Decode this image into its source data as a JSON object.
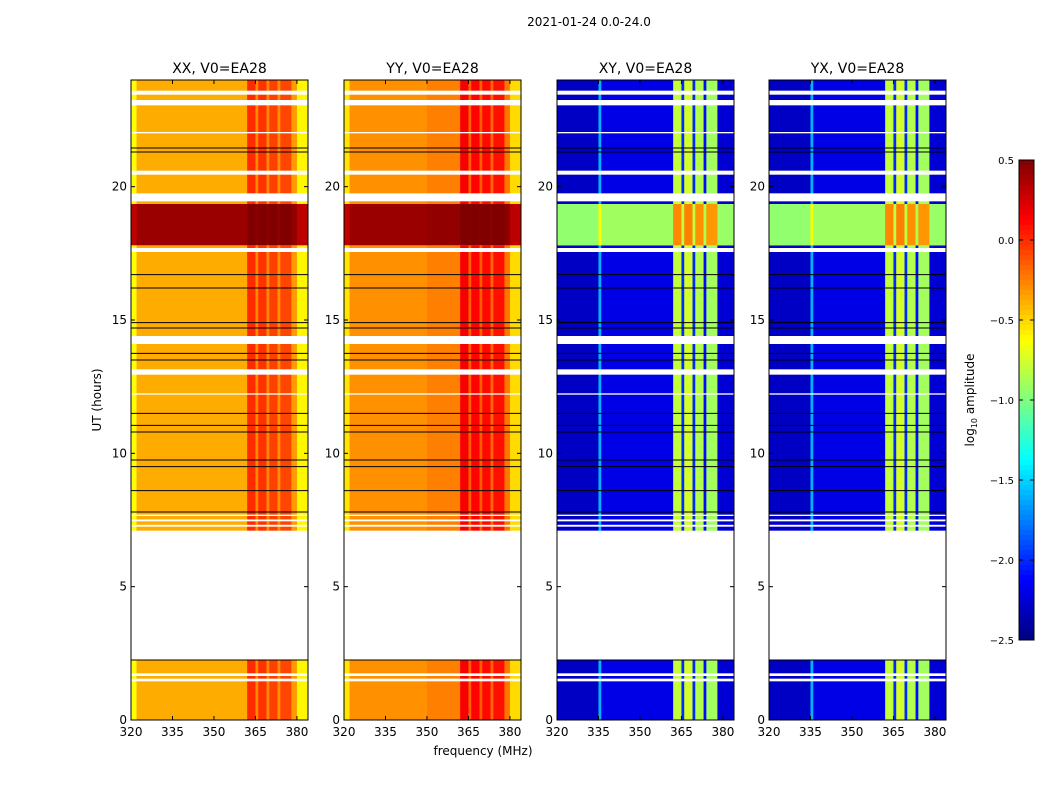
{
  "chart_data": {
    "type": "heatmap",
    "title": "2021-01-24 0.0-24.0",
    "xlabel": "frequency (MHz)",
    "ylabel": "UT (hours)",
    "xlim": [
      320,
      384
    ],
    "ylim": [
      0,
      24
    ],
    "xticks": [
      320,
      335,
      350,
      365,
      380
    ],
    "yticks": [
      0,
      5,
      10,
      15,
      20
    ],
    "data_intervals_hours": [
      [
        0,
        2.25
      ],
      [
        7.1,
        24
      ]
    ],
    "flagged_hours": [
      [
        1.45,
        1.55
      ],
      [
        1.65,
        1.75
      ],
      [
        7.25,
        7.32
      ],
      [
        7.45,
        7.52
      ],
      [
        7.65,
        7.7
      ],
      [
        14.1,
        14.4
      ],
      [
        12.95,
        13.15
      ],
      [
        19.45,
        19.75
      ],
      [
        17.55,
        17.7
      ],
      [
        20.45,
        20.6
      ],
      [
        23.05,
        23.25
      ],
      [
        23.45,
        23.6
      ],
      [
        22.0,
        22.05
      ],
      [
        12.2,
        12.25
      ]
    ],
    "black_lines_hours": [
      2.25,
      7.8,
      8.6,
      9.5,
      9.75,
      10.8,
      11.05,
      11.5,
      13.5,
      13.75,
      14.7,
      14.9,
      16.2,
      16.7,
      21.3,
      21.45
    ],
    "bright_block_hours": [
      17.8,
      19.35
    ],
    "panels": [
      {
        "title": "XX, V0=EA28",
        "base_level": -0.38,
        "block_level": 0.42,
        "freq_profile": [
          [
            320,
            322,
            -0.25
          ],
          [
            322,
            362,
            0
          ],
          [
            362,
            365,
            0.38
          ],
          [
            365,
            366,
            0.1
          ],
          [
            366,
            369,
            0.36
          ],
          [
            369,
            370,
            0.1
          ],
          [
            370,
            373,
            0.32
          ],
          [
            373,
            374,
            0.08
          ],
          [
            374,
            378,
            0.3
          ],
          [
            378,
            380,
            0.05
          ],
          [
            380,
            384,
            -0.22
          ]
        ]
      },
      {
        "title": "YY, V0=EA28",
        "base_level": -0.3,
        "block_level": 0.42,
        "freq_profile": [
          [
            320,
            322,
            -0.25
          ],
          [
            322,
            350,
            0
          ],
          [
            350,
            362,
            0.05
          ],
          [
            362,
            365,
            0.45
          ],
          [
            365,
            366,
            0.15
          ],
          [
            366,
            369,
            0.42
          ],
          [
            369,
            370,
            0.15
          ],
          [
            370,
            373,
            0.4
          ],
          [
            373,
            374,
            0.12
          ],
          [
            374,
            378,
            0.38
          ],
          [
            378,
            380,
            0.08
          ],
          [
            380,
            384,
            -0.22
          ]
        ]
      },
      {
        "title": "XY, V0=EA28",
        "base_level": -2.3,
        "block_level": -0.95,
        "freq_profile": [
          [
            320,
            335,
            0
          ],
          [
            335,
            336,
            0.7
          ],
          [
            336,
            362,
            0.1
          ],
          [
            362,
            365,
            1.5
          ],
          [
            365,
            366,
            0.3
          ],
          [
            366,
            369,
            1.55
          ],
          [
            369,
            370,
            0.3
          ],
          [
            370,
            373,
            1.45
          ],
          [
            373,
            374,
            0.2
          ],
          [
            374,
            378,
            1.4
          ],
          [
            378,
            384,
            0.05
          ]
        ]
      },
      {
        "title": "YX, V0=EA28",
        "base_level": -2.3,
        "block_level": -0.95,
        "freq_profile": [
          [
            320,
            335,
            0
          ],
          [
            335,
            336,
            0.7
          ],
          [
            336,
            362,
            0.1
          ],
          [
            362,
            365,
            1.5
          ],
          [
            365,
            366,
            0.3
          ],
          [
            366,
            369,
            1.55
          ],
          [
            369,
            370,
            0.3
          ],
          [
            370,
            373,
            1.45
          ],
          [
            373,
            374,
            0.2
          ],
          [
            374,
            378,
            1.4
          ],
          [
            378,
            384,
            0.05
          ]
        ]
      }
    ],
    "colorbar": {
      "label_prefix": "log",
      "label_sub": "10",
      "label_suffix": " amplitude",
      "range": [
        -2.5,
        0.5
      ],
      "ticks": [
        "0.5",
        "0.0",
        "−0.5",
        "−1.0",
        "−1.5",
        "−2.0",
        "−2.5"
      ],
      "tick_values": [
        0.5,
        0.0,
        -0.5,
        -1.0,
        -1.5,
        -2.0,
        -2.5
      ],
      "colormap": "jet"
    }
  }
}
